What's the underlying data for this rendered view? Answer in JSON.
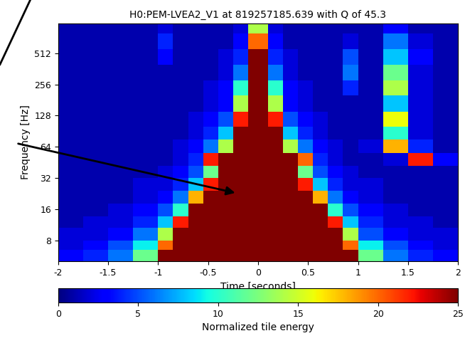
{
  "chart_data": {
    "type": "heatmap",
    "title": "H0:PEM-LVEA2_V1 at 819257185.639 with Q of 45.3",
    "x_label": "Time [seconds]",
    "y_label": "Frequency [Hz]",
    "log": "y",
    "xlim": [
      -2,
      2
    ],
    "xticks": [
      -2,
      -1.5,
      -1,
      -0.5,
      0,
      0.5,
      1,
      1.5,
      2
    ],
    "ylim": [
      5,
      1000
    ],
    "yticks": [
      8,
      16,
      32,
      64,
      128,
      256,
      512
    ],
    "time_edges": [
      -2,
      -1.75,
      -1.5,
      -1.25,
      -1,
      -0.85,
      -0.7,
      -0.55,
      -0.4,
      -0.25,
      -0.1,
      0.1,
      0.25,
      0.4,
      0.55,
      0.7,
      0.85,
      1,
      1.25,
      1.5,
      1.75,
      2
    ],
    "frequency_edges": [
      5,
      6.5,
      8,
      10.5,
      13.5,
      18,
      24,
      32,
      42,
      56,
      75,
      100,
      140,
      200,
      280,
      400,
      560,
      800,
      1000
    ],
    "cells": [
      [
        3,
        4,
        6,
        12,
        25,
        25,
        25,
        25,
        25,
        25,
        25,
        25,
        25,
        25,
        25,
        25,
        25,
        12,
        6,
        4,
        3
      ],
      [
        2,
        3,
        5,
        9,
        20,
        25,
        25,
        25,
        25,
        25,
        25,
        25,
        25,
        25,
        25,
        25,
        20,
        9,
        5,
        3,
        2
      ],
      [
        2,
        2,
        3,
        6,
        14,
        25,
        25,
        25,
        25,
        25,
        25,
        25,
        25,
        25,
        25,
        25,
        14,
        5,
        3,
        2,
        2
      ],
      [
        1,
        2,
        2,
        4,
        8,
        22,
        25,
        25,
        25,
        25,
        25,
        25,
        25,
        25,
        25,
        22,
        8,
        4,
        2,
        2,
        1
      ],
      [
        1,
        1,
        2,
        3,
        5,
        10,
        25,
        25,
        25,
        25,
        25,
        25,
        25,
        25,
        25,
        10,
        5,
        3,
        2,
        1,
        1
      ],
      [
        1,
        1,
        1,
        2,
        3,
        6,
        18,
        25,
        25,
        25,
        25,
        25,
        25,
        25,
        18,
        6,
        3,
        2,
        1,
        1,
        1
      ],
      [
        1,
        1,
        1,
        2,
        2,
        4,
        8,
        22,
        25,
        25,
        25,
        25,
        25,
        22,
        8,
        4,
        2,
        2,
        1,
        1,
        1
      ],
      [
        1,
        1,
        1,
        1,
        2,
        3,
        5,
        12,
        25,
        25,
        25,
        25,
        25,
        12,
        5,
        3,
        2,
        1,
        1,
        1,
        1
      ],
      [
        1,
        1,
        1,
        1,
        1,
        2,
        4,
        22,
        25,
        25,
        25,
        25,
        25,
        20,
        4,
        2,
        1,
        1,
        2,
        22,
        3
      ],
      [
        1,
        1,
        1,
        1,
        1,
        2,
        3,
        6,
        14,
        25,
        25,
        25,
        14,
        6,
        3,
        2,
        1,
        2,
        18,
        4,
        1
      ],
      [
        1,
        1,
        1,
        1,
        1,
        1,
        2,
        4,
        8,
        25,
        25,
        25,
        8,
        4,
        2,
        1,
        1,
        1,
        10,
        2,
        1
      ],
      [
        1,
        1,
        1,
        1,
        1,
        1,
        2,
        3,
        5,
        22,
        25,
        22,
        5,
        3,
        2,
        1,
        1,
        1,
        16,
        2,
        1
      ],
      [
        1,
        1,
        1,
        1,
        1,
        1,
        1,
        2,
        3,
        14,
        25,
        14,
        3,
        2,
        1,
        1,
        1,
        1,
        8,
        2,
        1
      ],
      [
        1,
        1,
        1,
        1,
        1,
        1,
        1,
        2,
        3,
        10,
        25,
        10,
        3,
        2,
        1,
        1,
        4,
        1,
        14,
        2,
        1
      ],
      [
        1,
        1,
        1,
        1,
        1,
        1,
        1,
        1,
        2,
        6,
        25,
        6,
        2,
        1,
        1,
        1,
        6,
        1,
        12,
        2,
        1
      ],
      [
        1,
        1,
        1,
        1,
        3,
        1,
        1,
        1,
        2,
        4,
        25,
        4,
        2,
        1,
        1,
        1,
        5,
        1,
        8,
        3,
        1
      ],
      [
        1,
        1,
        1,
        1,
        4,
        1,
        1,
        1,
        1,
        3,
        20,
        3,
        1,
        1,
        1,
        1,
        2,
        1,
        6,
        2,
        1
      ],
      [
        1,
        1,
        1,
        1,
        2,
        1,
        1,
        1,
        1,
        2,
        14,
        2,
        1,
        1,
        1,
        1,
        1,
        1,
        3,
        1,
        1
      ]
    ],
    "colorbar_label": "Normalized tile energy",
    "colorbar_range": [
      0,
      25
    ],
    "colorbar_ticks": [
      0,
      5,
      10,
      15,
      20,
      25
    ]
  }
}
